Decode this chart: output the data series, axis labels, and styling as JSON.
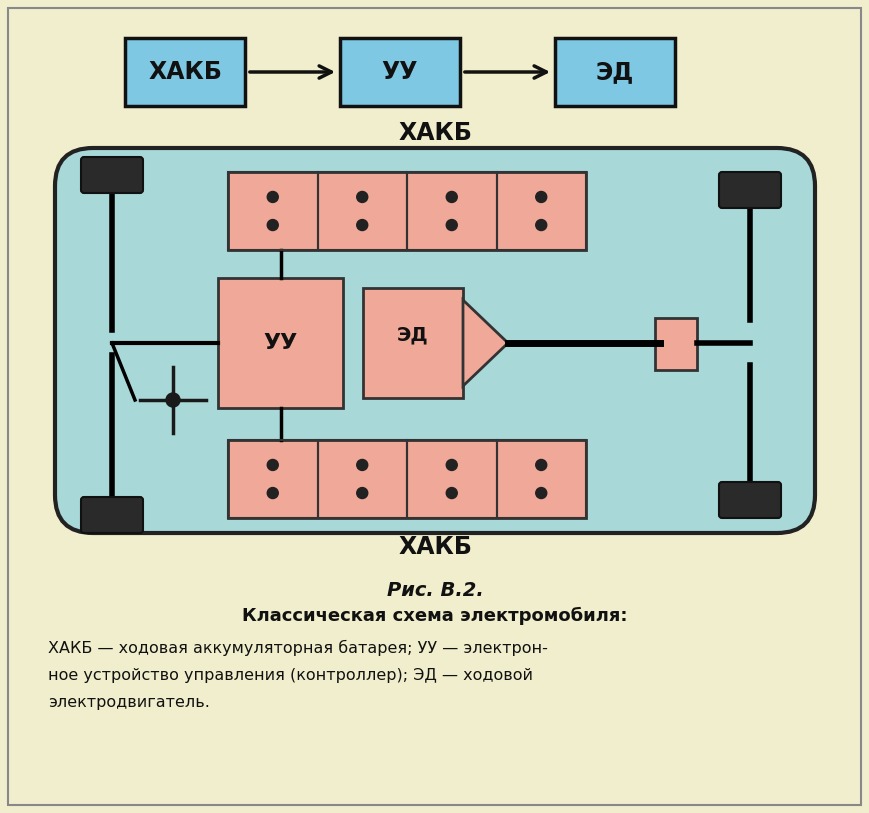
{
  "bg_color": "#f0eecc",
  "box_color_blue": "#7ec8e3",
  "box_color_pink": "#f0a898",
  "box_border": "#111111",
  "car_body_color": "#a8d8d8",
  "car_border": "#222222",
  "tire_color": "#333333",
  "title1": "Рис. В.2.",
  "title2": "Классическая схема электромобиля:",
  "top_boxes": [
    "ХАКБ",
    "УУ",
    "ЭД"
  ],
  "hakb_label": "ХАКБ",
  "uu_label": "УУ",
  "ed_label": "ЭД",
  "desc_lines": [
    "ХАКБ — ходовая аккумуляторная батарея; УУ — электрон-",
    "ное устройство управления (контроллер); ЭД — ходовой",
    "электродвигатель."
  ],
  "outer_border_color": "#888888",
  "outer_bg": "#f0eecc"
}
